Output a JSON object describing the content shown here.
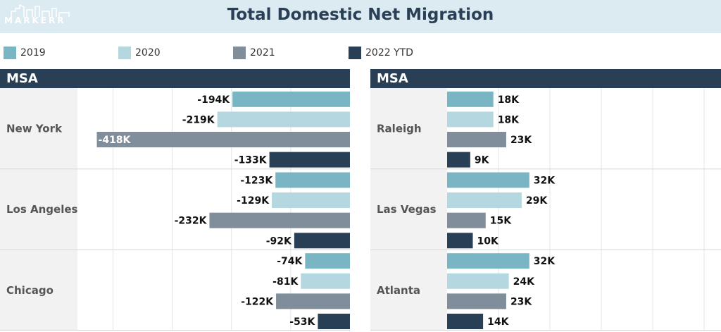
{
  "header": {
    "title": "Total Domestic Net Migration",
    "logo_text": "MARKERR"
  },
  "legend": [
    {
      "label": "2019",
      "color": "#7ab5c3"
    },
    {
      "label": "2020",
      "color": "#b5d7df"
    },
    {
      "label": "2021",
      "color": "#7f8e9a"
    },
    {
      "label": "2022 YTD",
      "color": "#283f56"
    }
  ],
  "panels": [
    {
      "header": "MSA"
    },
    {
      "header": "MSA"
    }
  ],
  "chart_data": [
    {
      "type": "bar",
      "orientation": "horizontal",
      "title": "Total Domestic Net Migration",
      "categories": [
        "New York",
        "Los Angeles",
        "Chicago"
      ],
      "series": [
        {
          "name": "2019",
          "values": [
            -194,
            -123,
            -74
          ],
          "labels": [
            "-194K",
            "-123K",
            "-74K"
          ]
        },
        {
          "name": "2020",
          "values": [
            -219,
            -129,
            -81
          ],
          "labels": [
            "-219K",
            "-129K",
            "-81K"
          ]
        },
        {
          "name": "2021",
          "values": [
            -418,
            -232,
            -122
          ],
          "labels": [
            "-418K",
            "-232K",
            "-122K"
          ]
        },
        {
          "name": "2022 YTD",
          "values": [
            -133,
            -92,
            -53
          ],
          "labels": [
            "-133K",
            "-92K",
            "-53K"
          ]
        }
      ],
      "xlim": [
        -450,
        0
      ],
      "grid": true
    },
    {
      "type": "bar",
      "orientation": "horizontal",
      "categories": [
        "Raleigh",
        "Las Vegas",
        "Atlanta"
      ],
      "series": [
        {
          "name": "2019",
          "values": [
            18,
            32,
            32
          ],
          "labels": [
            "18K",
            "32K",
            "32K"
          ]
        },
        {
          "name": "2020",
          "values": [
            18,
            29,
            24
          ],
          "labels": [
            "18K",
            "29K",
            "24K"
          ]
        },
        {
          "name": "2021",
          "values": [
            23,
            15,
            23
          ],
          "labels": [
            "23K",
            "15K",
            "23K"
          ]
        },
        {
          "name": "2022 YTD",
          "values": [
            9,
            10,
            14
          ],
          "labels": [
            "9K",
            "10K",
            "14K"
          ]
        }
      ],
      "xlim": [
        0,
        100
      ],
      "grid": true
    }
  ]
}
